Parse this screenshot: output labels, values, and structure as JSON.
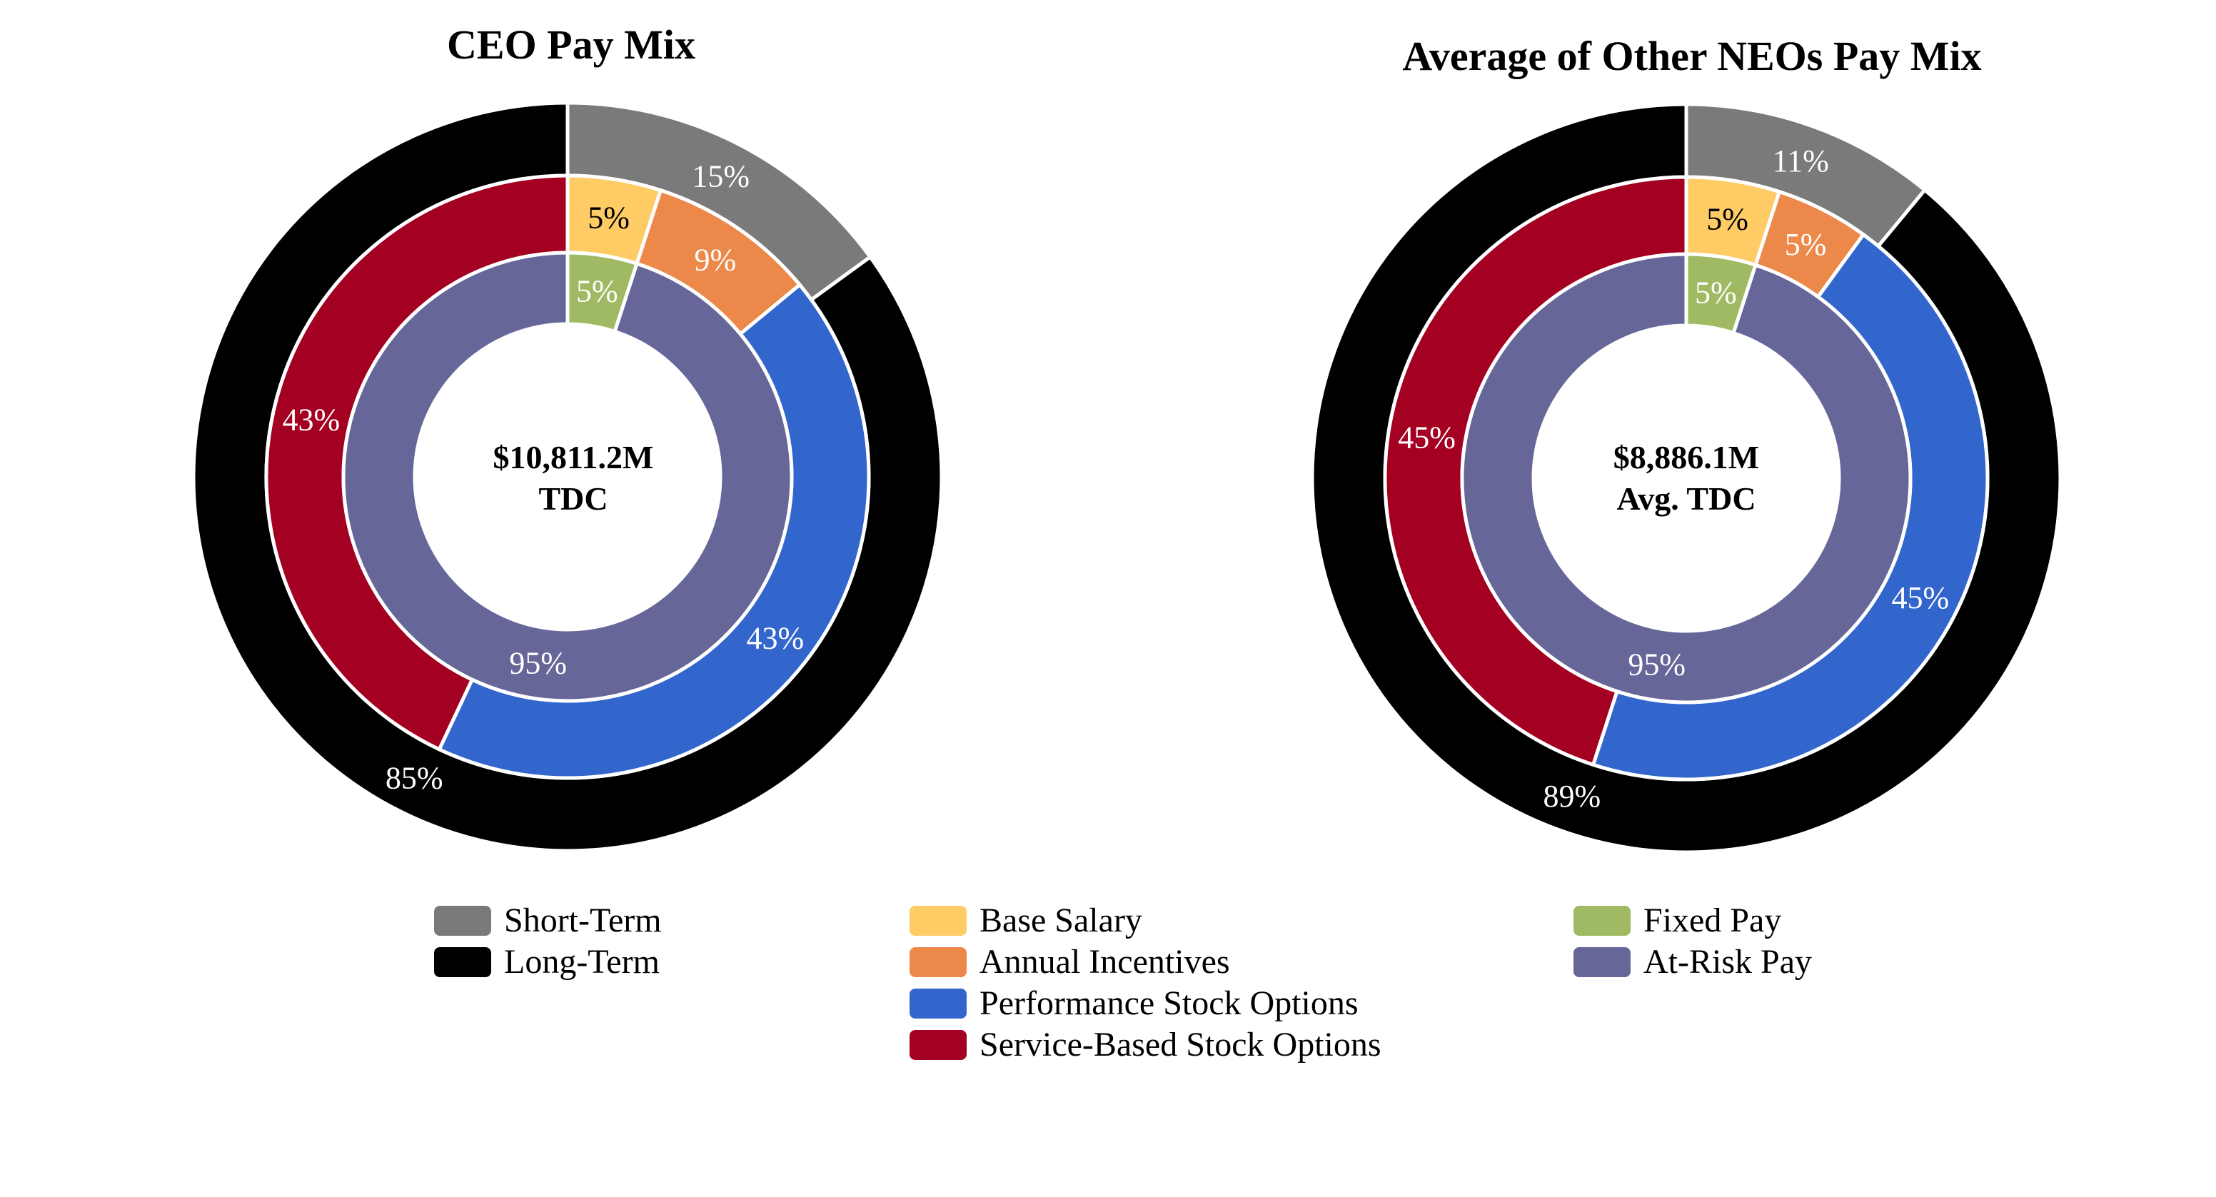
{
  "chart_data": [
    {
      "type": "pie",
      "subtype": "multi-ring donut",
      "title": "CEO Pay Mix",
      "center_label": {
        "line1": "$10,811.2M",
        "line2": "TDC"
      },
      "rings": [
        {
          "ring": "outer",
          "slices": [
            {
              "name": "Short-Term",
              "value": 15,
              "label": "15%"
            },
            {
              "name": "Long-Term",
              "value": 85,
              "label": "85%"
            }
          ]
        },
        {
          "ring": "middle",
          "slices": [
            {
              "name": "Base Salary",
              "value": 5,
              "label": "5%"
            },
            {
              "name": "Annual Incentives",
              "value": 9,
              "label": "9%"
            },
            {
              "name": "Performance Stock Options",
              "value": 43,
              "label": "43%"
            },
            {
              "name": "Service-Based Stock Options",
              "value": 43,
              "label": "43%"
            }
          ]
        },
        {
          "ring": "inner",
          "slices": [
            {
              "name": "Fixed Pay",
              "value": 5,
              "label": "5%"
            },
            {
              "name": "At-Risk Pay",
              "value": 95,
              "label": "95%"
            }
          ]
        }
      ]
    },
    {
      "type": "pie",
      "subtype": "multi-ring donut",
      "title": "Average of Other NEOs Pay Mix",
      "center_label": {
        "line1": "$8,886.1M",
        "line2": "Avg. TDC"
      },
      "rings": [
        {
          "ring": "outer",
          "slices": [
            {
              "name": "Short-Term",
              "value": 11,
              "label": "11%"
            },
            {
              "name": "Long-Term",
              "value": 89,
              "label": "89%"
            }
          ]
        },
        {
          "ring": "middle",
          "slices": [
            {
              "name": "Base Salary",
              "value": 5,
              "label": "5%"
            },
            {
              "name": "Annual Incentives",
              "value": 5,
              "label": "5%"
            },
            {
              "name": "Performance Stock Options",
              "value": 45,
              "label": "45%"
            },
            {
              "name": "Service-Based Stock Options",
              "value": 45,
              "label": "45%"
            }
          ]
        },
        {
          "ring": "inner",
          "slices": [
            {
              "name": "Fixed Pay",
              "value": 5,
              "label": "5%"
            },
            {
              "name": "At-Risk Pay",
              "value": 95,
              "label": "95%"
            }
          ]
        }
      ]
    }
  ],
  "colors": {
    "Short-Term": "#7a7a7a",
    "Long-Term": "#000000",
    "Base Salary": "#fecb65",
    "Annual Incentives": "#ec894a",
    "Performance Stock Options": "#3366cc",
    "Service-Based Stock Options": "#a30022",
    "Fixed Pay": "#9fba62",
    "At-Risk Pay": "#666699"
  },
  "label_colors": {
    "Base Salary": "#000000",
    "default": "#ffffff"
  },
  "legend": {
    "placement": "bottom",
    "items": [
      {
        "name": "Short-Term",
        "color": "#7a7a7a"
      },
      {
        "name": "Long-Term",
        "color": "#000000"
      },
      {
        "name": "Base Salary",
        "color": "#fecb65"
      },
      {
        "name": "Annual Incentives",
        "color": "#ec894a"
      },
      {
        "name": "Performance Stock Options",
        "color": "#3366cc"
      },
      {
        "name": "Service-Based Stock Options",
        "color": "#a30022"
      },
      {
        "name": "Fixed Pay",
        "color": "#9fba62"
      },
      {
        "name": "At-Risk Pay",
        "color": "#666699"
      }
    ]
  }
}
